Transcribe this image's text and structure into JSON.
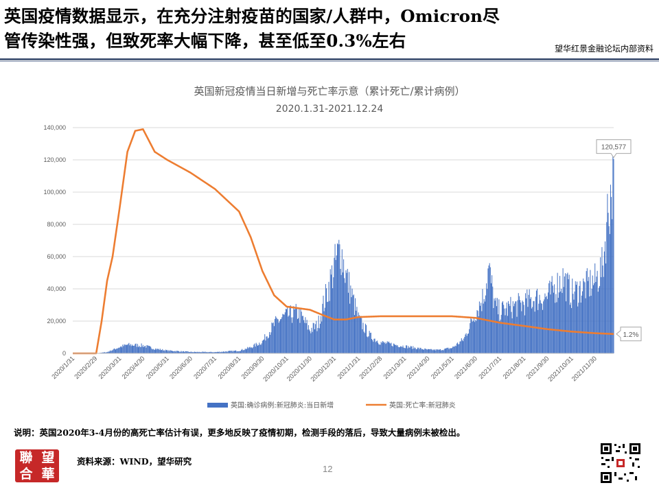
{
  "headline": {
    "line1": "英国疫情数据显示，在充分注射疫苗的国家/人群中，Omicron尽",
    "line2": "管传染性强，但致死率大幅下降，甚至低至0.3%左右"
  },
  "brand": "望华红景金融论坛内部资料",
  "note": "说明：英国2020年3-4月份的高死亡率估计有误，更多地反映了疫情初期，检测手段的落后，导致大量病例未被检出。",
  "source": "资料来源：WIND，望华研究",
  "page_number": "12",
  "logo_chars": [
    "聯",
    "望",
    "合",
    "華"
  ],
  "colors": {
    "bar": "#4472C4",
    "line": "#ED7D31",
    "rule": "#4a5a7a",
    "logo": "#c62828"
  },
  "chart_data": {
    "type": "bar",
    "title": "英国新冠疫情当日新增与死亡率示意（累计死亡/累计病例）",
    "subtitle": "2020.1.31-2021.12.24",
    "ylim": [
      0,
      140000
    ],
    "yticks": [
      "0",
      "20,000",
      "40,000",
      "60,000",
      "80,000",
      "100,000",
      "120,000",
      "140,000"
    ],
    "xtick_labels": [
      "2020/1/31",
      "2020/2/29",
      "2020/3/31",
      "2020/4/30",
      "2020/5/31",
      "2020/6/30",
      "2020/7/31",
      "2020/8/31",
      "2020/9/30",
      "2020/10/31",
      "2020/11/30",
      "2020/12/31",
      "2021/1/31",
      "2021/2/28",
      "2021/3/31",
      "2021/4/30",
      "2021/5/31",
      "2021/6/30",
      "2021/7/31",
      "2021/8/31",
      "2021/9/30",
      "2021/10/31",
      "2021/11/30"
    ],
    "grid": true,
    "legend_position": "bottom",
    "series": [
      {
        "name": "英国:确诊病例:新冠肺炎:当日新增",
        "kind": "bar",
        "axis": "left",
        "points": [
          [
            "2020/1/31",
            0
          ],
          [
            "2020/2/29",
            30
          ],
          [
            "2020/3/15",
            800
          ],
          [
            "2020/3/31",
            4000
          ],
          [
            "2020/4/10",
            5500
          ],
          [
            "2020/4/30",
            5000
          ],
          [
            "2020/5/15",
            3000
          ],
          [
            "2020/5/31",
            1800
          ],
          [
            "2020/6/30",
            900
          ],
          [
            "2020/7/31",
            800
          ],
          [
            "2020/8/31",
            1700
          ],
          [
            "2020/9/15",
            3800
          ],
          [
            "2020/9/30",
            7500
          ],
          [
            "2020/10/10",
            15000
          ],
          [
            "2020/10/20",
            21000
          ],
          [
            "2020/10/31",
            24000
          ],
          [
            "2020/11/15",
            26000
          ],
          [
            "2020/11/30",
            15000
          ],
          [
            "2020/12/10",
            18000
          ],
          [
            "2020/12/20",
            36000
          ],
          [
            "2020/12/31",
            55000
          ],
          [
            "2021/1/8",
            68000
          ],
          [
            "2021/1/15",
            50000
          ],
          [
            "2021/1/31",
            22000
          ],
          [
            "2021/2/15",
            11000
          ],
          [
            "2021/2/28",
            7000
          ],
          [
            "2021/3/31",
            4500
          ],
          [
            "2021/4/30",
            2300
          ],
          [
            "2021/5/15",
            2200
          ],
          [
            "2021/5/31",
            3500
          ],
          [
            "2021/6/15",
            9000
          ],
          [
            "2021/6/30",
            26000
          ],
          [
            "2021/7/10",
            36000
          ],
          [
            "2021/7/17",
            54000
          ],
          [
            "2021/7/25",
            30000
          ],
          [
            "2021/7/31",
            27000
          ],
          [
            "2021/8/31",
            32000
          ],
          [
            "2021/9/15",
            35000
          ],
          [
            "2021/9/30",
            36000
          ],
          [
            "2021/10/20",
            48000
          ],
          [
            "2021/10/31",
            38000
          ],
          [
            "2021/11/15",
            42000
          ],
          [
            "2021/11/30",
            46000
          ],
          [
            "2021/12/10",
            55000
          ],
          [
            "2021/12/17",
            93000
          ],
          [
            "2021/12/22",
            106000
          ],
          [
            "2021/12/24",
            120577
          ]
        ]
      },
      {
        "name": "英国:死亡率:新冠肺炎",
        "kind": "line",
        "axis": "right",
        "points": [
          [
            "2020/1/31",
            0
          ],
          [
            "2020/3/1",
            0
          ],
          [
            "2020/3/8",
            2
          ],
          [
            "2020/3/15",
            4.5
          ],
          [
            "2020/3/22",
            6
          ],
          [
            "2020/3/31",
            9
          ],
          [
            "2020/4/10",
            12.5
          ],
          [
            "2020/4/20",
            13.8
          ],
          [
            "2020/4/30",
            13.9
          ],
          [
            "2020/5/15",
            12.5
          ],
          [
            "2020/5/31",
            12.0
          ],
          [
            "2020/6/30",
            11.2
          ],
          [
            "2020/7/31",
            10.2
          ],
          [
            "2020/8/31",
            8.8
          ],
          [
            "2020/9/15",
            7.2
          ],
          [
            "2020/9/30",
            5.1
          ],
          [
            "2020/10/15",
            3.6
          ],
          [
            "2020/10/31",
            2.9
          ],
          [
            "2020/11/15",
            2.8
          ],
          [
            "2020/11/30",
            2.7
          ],
          [
            "2020/12/15",
            2.4
          ],
          [
            "2020/12/31",
            2.1
          ],
          [
            "2021/1/15",
            2.1
          ],
          [
            "2021/1/31",
            2.25
          ],
          [
            "2021/2/28",
            2.3
          ],
          [
            "2021/3/31",
            2.3
          ],
          [
            "2021/4/30",
            2.3
          ],
          [
            "2021/5/31",
            2.3
          ],
          [
            "2021/6/30",
            2.2
          ],
          [
            "2021/7/31",
            1.9
          ],
          [
            "2021/8/31",
            1.7
          ],
          [
            "2021/9/30",
            1.5
          ],
          [
            "2021/10/31",
            1.35
          ],
          [
            "2021/11/30",
            1.25
          ],
          [
            "2021/12/24",
            1.2
          ]
        ]
      }
    ],
    "annotations": {
      "bar_last_label": "120,577",
      "line_last_label": "1.2%"
    }
  }
}
